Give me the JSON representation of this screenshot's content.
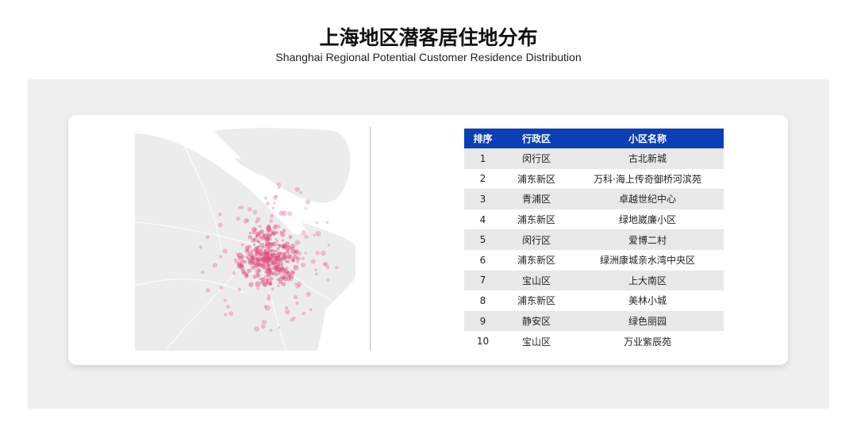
{
  "title": "上海地区潜客居住地分布",
  "subtitle": "Shanghai Regional Potential Customer Residence Distribution",
  "colors": {
    "header": "#0a3fb5",
    "dot": "#e0507a",
    "land": "#ececec"
  },
  "table": {
    "headers": [
      "排序",
      "行政区",
      "小区名称"
    ],
    "rows": [
      [
        "1",
        "闵行区",
        "古北新城"
      ],
      [
        "2",
        "浦东新区",
        "万科·海上传奇御桥河滨苑"
      ],
      [
        "3",
        "青浦区",
        "卓越世纪中心"
      ],
      [
        "4",
        "浦东新区",
        "绿地崴廉小区"
      ],
      [
        "5",
        "闵行区",
        "爱博二村"
      ],
      [
        "6",
        "浦东新区",
        "绿洲康城亲水湾中央区"
      ],
      [
        "7",
        "宝山区",
        "上大南区"
      ],
      [
        "8",
        "浦东新区",
        "美林小城"
      ],
      [
        "9",
        "静安区",
        "绿色丽园"
      ],
      [
        "10",
        "宝山区",
        "万业紫辰苑"
      ]
    ]
  }
}
